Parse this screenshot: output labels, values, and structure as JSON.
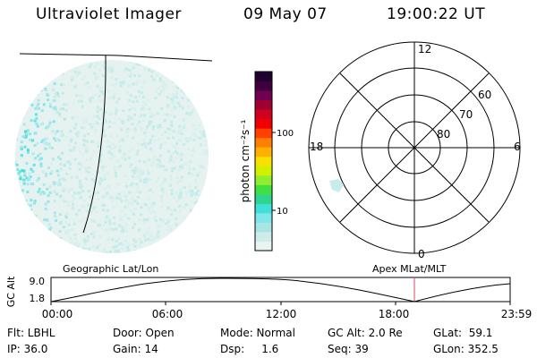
{
  "header": {
    "title": "Ultraviolet Imager",
    "date": "09 May 07",
    "time": "19:00:22 UT"
  },
  "colorbar": {
    "label": "photon cm⁻²s⁻¹",
    "ticks": [
      "100",
      "10"
    ],
    "colors": [
      "#e8f4f2",
      "#d0ecea",
      "#a8e6e6",
      "#7fe7ec",
      "#3fe0d8",
      "#2fd48f",
      "#40e040",
      "#90ee30",
      "#d0f000",
      "#f8e000",
      "#ffb000",
      "#ff8000",
      "#ff4000",
      "#f00000",
      "#d00020",
      "#a00030",
      "#700050",
      "#400040",
      "#200030"
    ]
  },
  "polar": {
    "mlt_labels": [
      "12",
      "18",
      "6",
      "0"
    ],
    "lat_labels": [
      "60",
      "70",
      "80"
    ]
  },
  "orbit": {
    "left_label": "Geographic Lat/Lon",
    "right_label": "Apex MLat/MLT",
    "y_axis_label": "GC Alt",
    "y_ticks": [
      "9.0",
      "1.8"
    ],
    "x_ticks": [
      "00:00",
      "06:00",
      "12:00",
      "18:00",
      "23:59"
    ],
    "marker_color": "#e04060"
  },
  "info": {
    "flt": "Flt: LBHL",
    "ip": "IP: 36.0",
    "door": "Door: Open",
    "gain": "Gain: 14",
    "mode": "Mode: Normal",
    "dsp": "Dsp:     1.6",
    "gcalt": "GC Alt: 2.0 Re",
    "seq": "Seq: 39",
    "glat": "GLat:  59.1",
    "glon": "GLon: 352.5"
  }
}
